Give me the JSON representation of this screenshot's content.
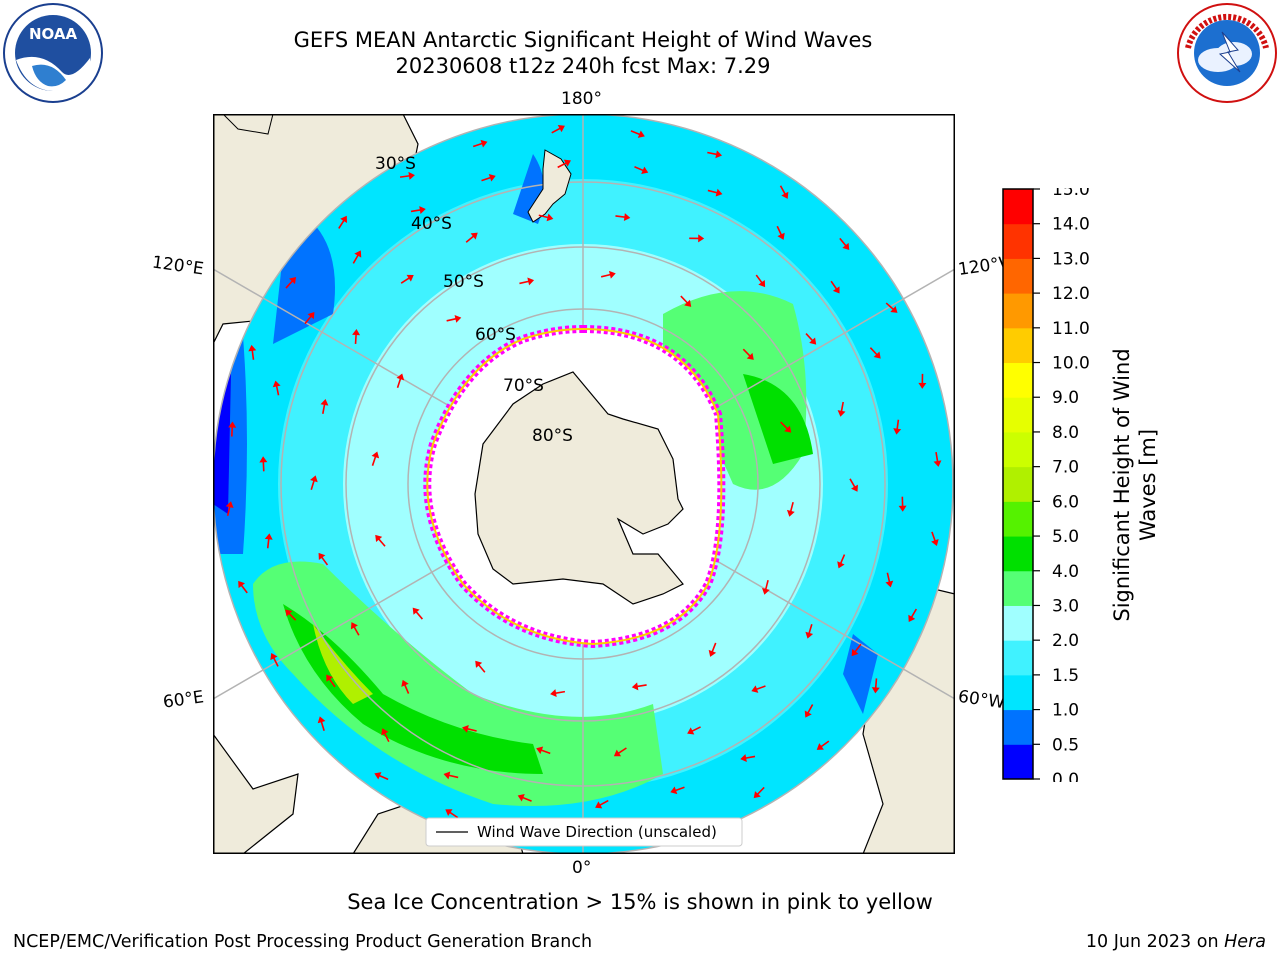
{
  "header": {
    "title_line1": "GEFS MEAN Antarctic Significant Height of Wind Waves",
    "title_line2": "20230608 t12z 240h fcst   Max: 7.29"
  },
  "logos": {
    "noaa": {
      "icon": "noaa-logo",
      "text": "NOAA",
      "ring_text": "NATIONAL OCEANIC AND ATMOSPHERIC ADMINISTRATION · U.S. DEPARTMENT OF COMMERCE"
    },
    "nws": {
      "icon": "nws-logo",
      "ring_text": "NATIONAL WEATHER SERVICE"
    }
  },
  "map": {
    "projection": "south polar stereographic",
    "longitude_labels": {
      "top": "180°",
      "bottom": "0°",
      "upper_left": "120°E",
      "upper_right": "120°W",
      "lower_left": "60°E",
      "lower_right": "60°W"
    },
    "latitude_labels": [
      "30°S",
      "40°S",
      "50°S",
      "60°S",
      "70°S",
      "80°S"
    ],
    "legend": "Wind Wave Direction (unscaled)",
    "colors": {
      "land": "#efebdb",
      "ice_free_ocean": "#ffffff",
      "ice_edge": "#ff00ff",
      "arrows": "#ff0000",
      "graticule": "#b3b3b3"
    }
  },
  "colorbar": {
    "label_line1": "Significant Height of Wind",
    "label_line2": "Waves [m]",
    "ticks": [
      "0.0",
      "0.5",
      "1.0",
      "1.5",
      "2.0",
      "3.0",
      "4.0",
      "5.0",
      "6.0",
      "7.0",
      "8.0",
      "9.0",
      "10.0",
      "11.0",
      "12.0",
      "13.0",
      "14.0",
      "15.0"
    ],
    "colors": [
      "#0000ff",
      "#0073ff",
      "#00e5ff",
      "#40f2ff",
      "#a0ffff",
      "#55ff75",
      "#00e000",
      "#55f200",
      "#b0f000",
      "#ccff00",
      "#e6ff00",
      "#ffff00",
      "#ffcc00",
      "#ff9900",
      "#ff6600",
      "#ff3300",
      "#ff0000"
    ]
  },
  "footer": {
    "ice_note": "Sea Ice Concentration > 15% is shown in pink to yellow",
    "credit": "NCEP/EMC/Verification Post Processing Product Generation Branch",
    "date": "10 Jun 2023 on",
    "machine": "Hera"
  }
}
